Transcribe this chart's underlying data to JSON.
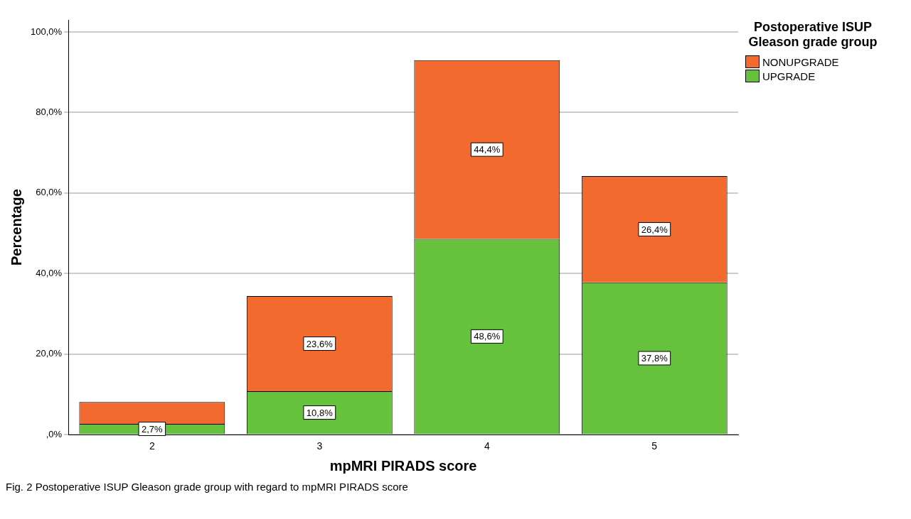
{
  "chart_data": {
    "type": "bar",
    "stacked": true,
    "xlabel": "mpMRI PIRADS score",
    "ylabel": "Percentage",
    "legend_title": "Postoperative ISUP Gleason grade group",
    "legend": "top right",
    "grid": "y",
    "categories": [
      "2",
      "3",
      "4",
      "5"
    ],
    "series": [
      {
        "name": "UPGRADE",
        "color": "#66c23c",
        "values": [
          2.7,
          10.8,
          48.6,
          37.8
        ],
        "value_labels": [
          "2,7%",
          "10,8%",
          "48,6%",
          "37,8%"
        ]
      },
      {
        "name": "NONUPGRADE",
        "color": "#f26a2e",
        "values": [
          5.4,
          23.6,
          44.4,
          26.4
        ],
        "value_labels": [
          null,
          "23,6%",
          "44,4%",
          "26,4%"
        ]
      }
    ],
    "ylim": [
      0,
      103
    ],
    "yticks": [
      {
        "value": 0,
        "label": ",0%"
      },
      {
        "value": 20,
        "label": "20,0%"
      },
      {
        "value": 40,
        "label": "40,0%"
      },
      {
        "value": 60,
        "label": "60,0%"
      },
      {
        "value": 80,
        "label": "80,0%"
      },
      {
        "value": 100,
        "label": "100,0%"
      }
    ],
    "annotations": [
      "Fig. 2 Postoperative ISUP Gleason grade group with regard to mpMRI PIRADS score"
    ]
  }
}
